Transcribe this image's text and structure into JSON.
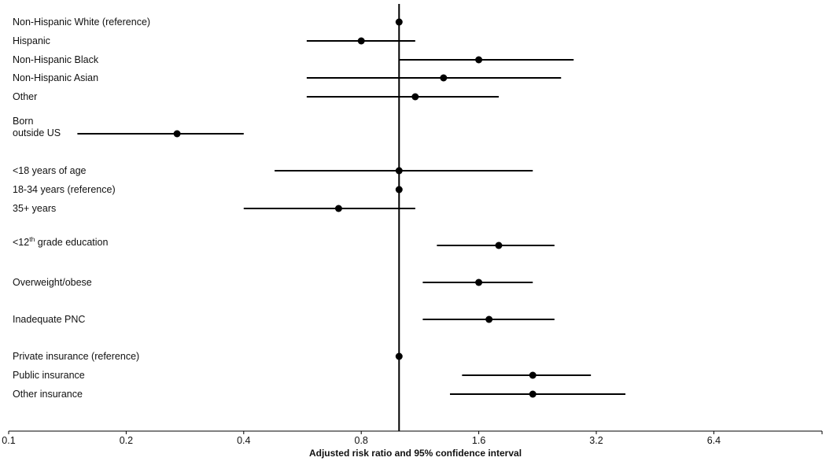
{
  "chart_data": {
    "type": "forest",
    "xlabel": "Adjusted risk ratio and 95% confidence interval",
    "x_scale": "log2",
    "xlim": [
      0.1,
      12.8
    ],
    "xticks": [
      0.1,
      0.2,
      0.4,
      0.8,
      1.6,
      3.2,
      6.4
    ],
    "xtick_labels": [
      "0.1",
      "0.2",
      "0.4",
      "0.8",
      "1.6",
      "3.2",
      "6.4"
    ],
    "reference_line": 1.0,
    "rows": [
      {
        "label": "Non-Hispanic White (reference)",
        "rr": 1.0,
        "lo": null,
        "hi": null
      },
      {
        "label": "Hispanic",
        "rr": 0.8,
        "lo": 0.58,
        "hi": 1.1
      },
      {
        "label": "Non-Hispanic Black",
        "rr": 1.6,
        "lo": 1.0,
        "hi": 2.8
      },
      {
        "label": "Non-Hispanic Asian",
        "rr": 1.3,
        "lo": 0.58,
        "hi": 2.6
      },
      {
        "label": "Other",
        "rr": 1.1,
        "lo": 0.58,
        "hi": 1.8
      },
      {
        "label": "Born outside US",
        "label_lines": [
          "Born",
          "outside US"
        ],
        "rr": 0.27,
        "lo": 0.15,
        "hi": 0.4
      },
      {
        "label": "<18 years of age",
        "rr": 1.0,
        "lo": 0.48,
        "hi": 2.2
      },
      {
        "label": "18-34 years (reference)",
        "rr": 1.0,
        "lo": null,
        "hi": null
      },
      {
        "label": "35+ years",
        "rr": 0.7,
        "lo": 0.4,
        "hi": 1.1
      },
      {
        "label": "<12th grade education",
        "label_parts": [
          "<12",
          "th",
          " grade education"
        ],
        "rr": 1.8,
        "lo": 1.25,
        "hi": 2.5
      },
      {
        "label": "Overweight/obese",
        "rr": 1.6,
        "lo": 1.15,
        "hi": 2.2
      },
      {
        "label": "Inadequate PNC",
        "rr": 1.7,
        "lo": 1.15,
        "hi": 2.5
      },
      {
        "label": "Private insurance (reference)",
        "rr": 1.0,
        "lo": null,
        "hi": null
      },
      {
        "label": "Public insurance",
        "rr": 2.2,
        "lo": 1.45,
        "hi": 3.1
      },
      {
        "label": "Other insurance",
        "rr": 2.2,
        "lo": 1.35,
        "hi": 3.8
      }
    ]
  }
}
